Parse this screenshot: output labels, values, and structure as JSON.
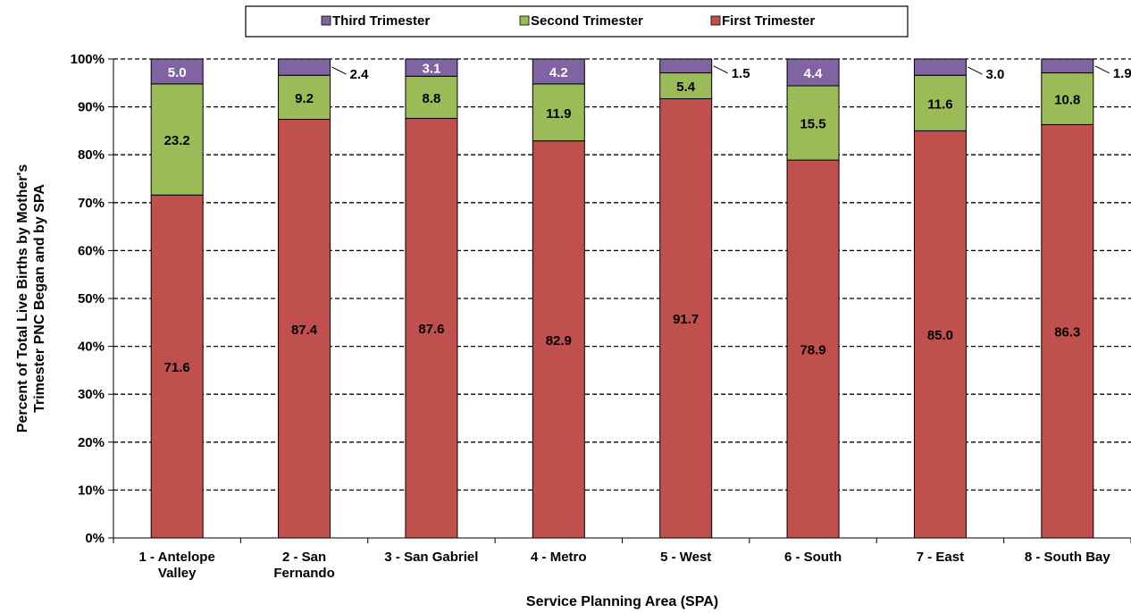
{
  "chart_data": {
    "type": "bar",
    "stacked": true,
    "percent_stacked": true,
    "title": "",
    "xlabel": "Service Planning Area (SPA)",
    "ylabel_lines": [
      "Percent of Total Live Births by Mother's",
      "Trimester PNC Began and by SPA"
    ],
    "ylim": [
      0,
      100
    ],
    "yticks": [
      "0%",
      "10%",
      "20%",
      "30%",
      "40%",
      "50%",
      "60%",
      "70%",
      "80%",
      "90%",
      "100%"
    ],
    "grid": "horizontal-dashed",
    "legend_placement": "top-center",
    "categories": [
      [
        "1 - Antelope",
        "Valley"
      ],
      [
        "2 - San",
        "Fernando"
      ],
      [
        "3 - San Gabriel"
      ],
      [
        "4 - Metro"
      ],
      [
        "5 - West"
      ],
      [
        "6 - South"
      ],
      [
        "7 - East"
      ],
      [
        "8 - South Bay"
      ]
    ],
    "series": [
      {
        "name": "First Trimester",
        "color": "#c0504d",
        "label_color": "#000000",
        "values": [
          71.6,
          87.4,
          87.6,
          82.9,
          91.7,
          78.9,
          85.0,
          86.3
        ],
        "labels": [
          "71.6",
          "87.4",
          "87.6",
          "82.9",
          "91.7",
          "78.9",
          "85.0",
          "86.3"
        ]
      },
      {
        "name": "Second Trimester",
        "color": "#9bbb59",
        "label_color": "#000000",
        "values": [
          23.2,
          9.2,
          8.8,
          11.9,
          5.4,
          15.5,
          11.6,
          10.8
        ],
        "labels": [
          "23.2",
          "9.2",
          "8.8",
          "11.9",
          "5.4",
          "15.5",
          "11.6",
          "10.8"
        ]
      },
      {
        "name": "Third Trimester",
        "color": "#8064a2",
        "label_color": "#ffffff",
        "values": [
          5.0,
          2.4,
          3.1,
          4.2,
          1.5,
          4.4,
          3.0,
          1.9
        ],
        "labels": [
          "5.0",
          "2.4",
          "3.1",
          "4.2",
          "1.5",
          "4.4",
          "3.0",
          "1.9"
        ],
        "callout": [
          false,
          true,
          false,
          false,
          true,
          false,
          true,
          true
        ]
      }
    ],
    "legend_order": [
      "Third Trimester",
      "Second Trimester",
      "First Trimester"
    ]
  }
}
